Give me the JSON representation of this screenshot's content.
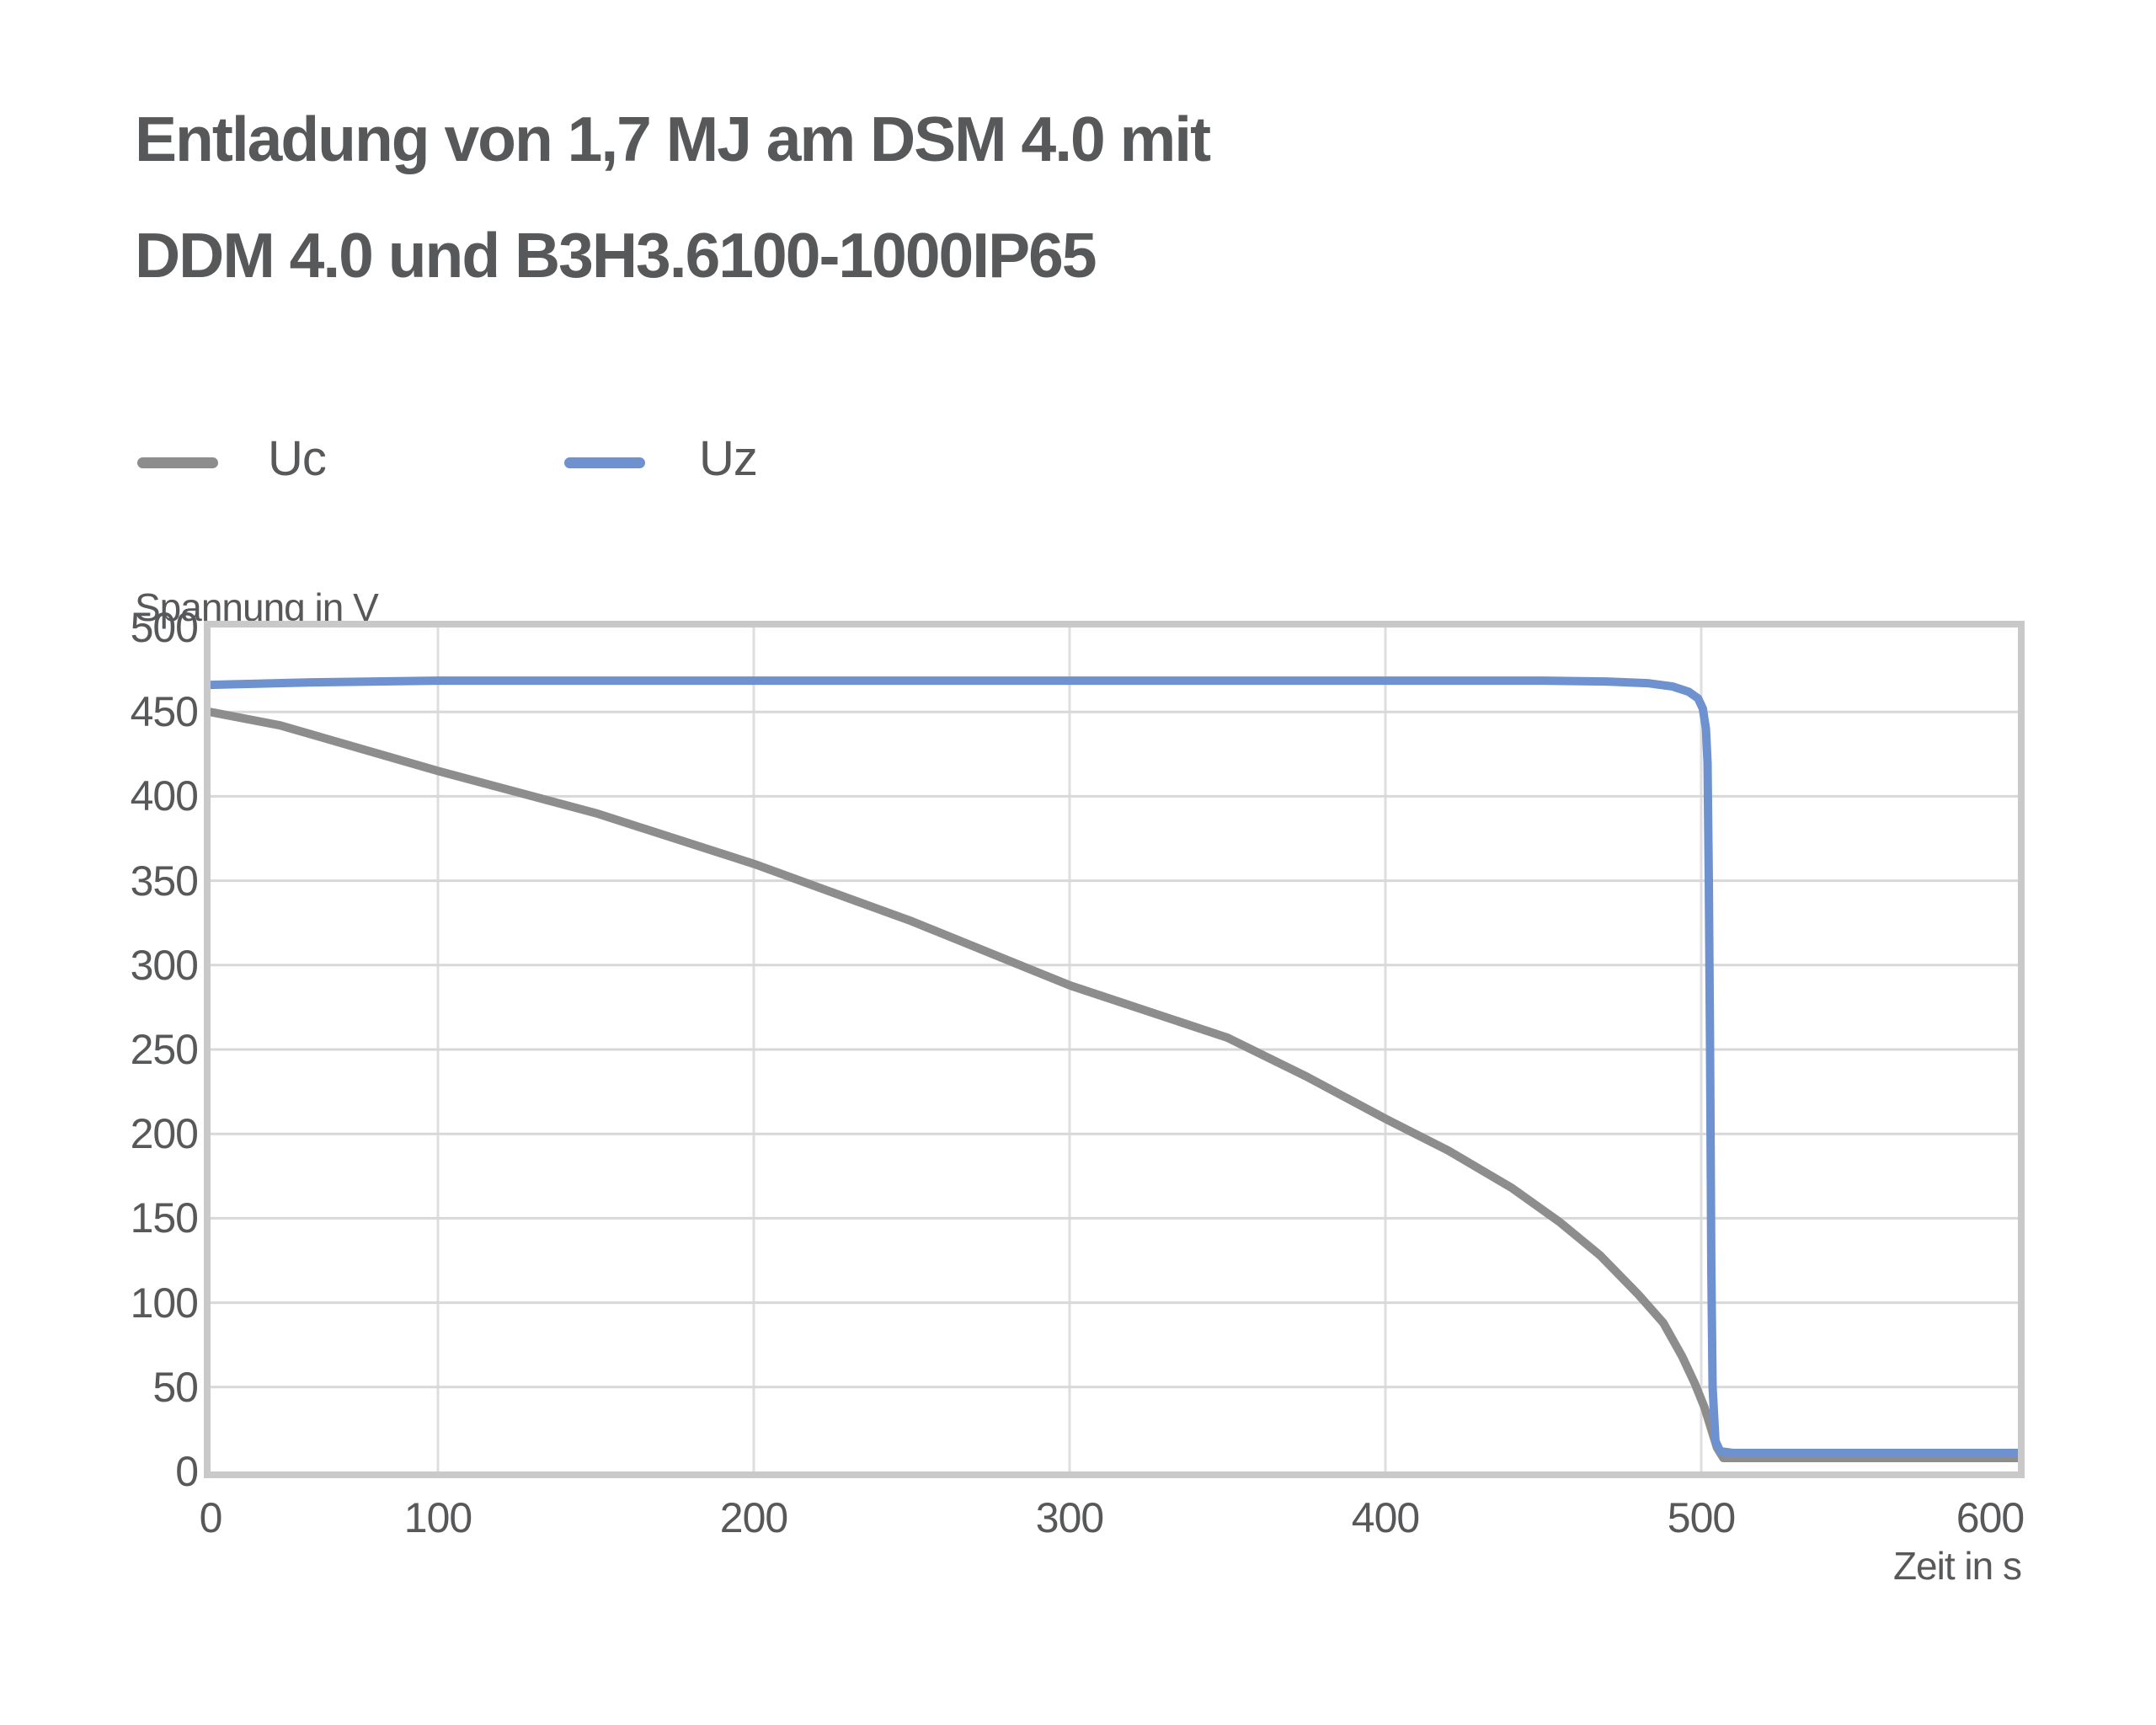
{
  "page": {
    "background": "#ffffff"
  },
  "title": {
    "line1": "Entladung von 1,7 MJ am DSM 4.0 mit",
    "line2": "DDM 4.0 und B3H3.6100-1000IP65"
  },
  "legend": {
    "items": [
      {
        "label": "Uc",
        "color": "#8d8d8d"
      },
      {
        "label": "Uz",
        "color": "#6e91d0"
      }
    ]
  },
  "axes": {
    "y_title": "Spannung in V",
    "x_title": "Zeit in s"
  },
  "style": {
    "text_color": "#57585a",
    "plot_border": "#c9c9c9",
    "grid_vertical": "#dedede",
    "grid_horizontal": "#d8d8d8",
    "line_uc": "#8d8d8d",
    "line_uz": "#6e91d0"
  },
  "chart_data": {
    "type": "line",
    "title": "Entladung von 1,7 MJ am DSM 4.0 mit DDM 4.0 und B3H3.6100-1000IP65",
    "xlabel": "Zeit in s",
    "ylabel": "Spannung in V",
    "xlim": [
      0,
      612
    ],
    "ylim": [
      0,
      500
    ],
    "x_ticks": [
      0,
      100,
      200,
      300,
      400,
      500,
      600
    ],
    "y_ticks": [
      0,
      50,
      100,
      150,
      200,
      250,
      300,
      350,
      400,
      450,
      500
    ],
    "grid": true,
    "legend_position": "top-left-outside",
    "series": [
      {
        "name": "Uc",
        "color": "#8d8d8d",
        "points": [
          [
            0,
            460
          ],
          [
            50,
            442
          ],
          [
            100,
            415
          ],
          [
            150,
            390
          ],
          [
            200,
            360
          ],
          [
            250,
            326
          ],
          [
            300,
            288
          ],
          [
            350,
            257
          ],
          [
            375,
            234
          ],
          [
            400,
            209
          ],
          [
            420,
            190
          ],
          [
            440,
            168
          ],
          [
            455,
            148
          ],
          [
            468,
            128
          ],
          [
            480,
            105
          ],
          [
            488,
            88
          ],
          [
            494,
            68
          ],
          [
            498,
            52
          ],
          [
            501,
            38
          ],
          [
            503,
            26
          ],
          [
            505,
            14
          ],
          [
            507,
            8
          ],
          [
            520,
            8
          ],
          [
            560,
            8
          ],
          [
            612,
            8
          ]
        ]
      },
      {
        "name": "Uz",
        "color": "#6e91d0",
        "points": [
          [
            0,
            465
          ],
          [
            28,
            466
          ],
          [
            60,
            467.5
          ],
          [
            100,
            468.5
          ],
          [
            200,
            468.5
          ],
          [
            300,
            468.5
          ],
          [
            400,
            468.5
          ],
          [
            450,
            468.5
          ],
          [
            470,
            468
          ],
          [
            483,
            467
          ],
          [
            491,
            465
          ],
          [
            496,
            462
          ],
          [
            499,
            458
          ],
          [
            500.5,
            452
          ],
          [
            501.5,
            440
          ],
          [
            502,
            420
          ],
          [
            502.4,
            350
          ],
          [
            502.8,
            250
          ],
          [
            503.2,
            120
          ],
          [
            503.6,
            50
          ],
          [
            504.5,
            18
          ],
          [
            506,
            12
          ],
          [
            510,
            11
          ],
          [
            560,
            11
          ],
          [
            612,
            11
          ]
        ]
      }
    ]
  }
}
